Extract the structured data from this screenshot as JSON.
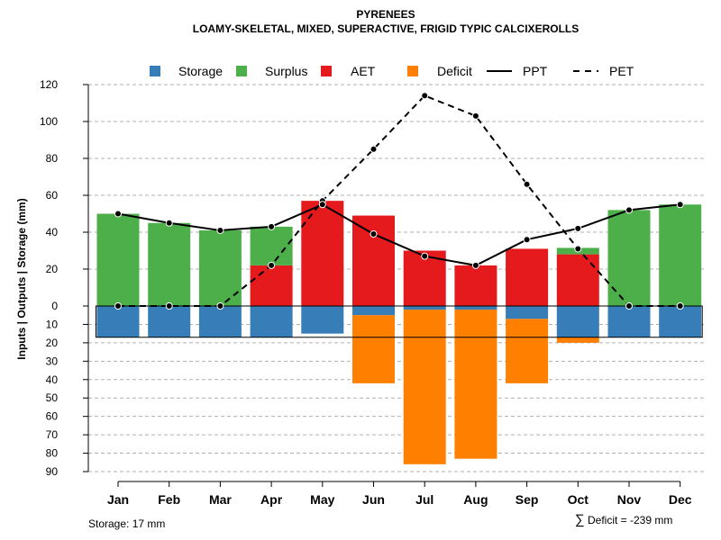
{
  "chart_data": {
    "type": "bar",
    "title": "PYRENEES",
    "subtitle": "LOAMY-SKELETAL, MIXED, SUPERACTIVE, FRIGID TYPIC CALCIXEROLLS",
    "ylabel": "Inputs | Outputs | Storage    (mm)",
    "categories": [
      "Jan",
      "Feb",
      "Mar",
      "Apr",
      "May",
      "Jun",
      "Jul",
      "Aug",
      "Sep",
      "Oct",
      "Nov",
      "Dec"
    ],
    "ylim_top": [
      0,
      120
    ],
    "ylim_bottom": [
      0,
      90
    ],
    "yticks_top": [
      "0",
      "20",
      "40",
      "60",
      "80",
      "100",
      "120"
    ],
    "yticks_bottom": [
      "10",
      "20",
      "30",
      "40",
      "50",
      "60",
      "70",
      "80",
      "90"
    ],
    "storage_capacity": 17,
    "series": [
      {
        "name": "Storage",
        "color": "#377eb8",
        "values": [
          17,
          17,
          17,
          17,
          15,
          5,
          2,
          2,
          7,
          17,
          17,
          17
        ]
      },
      {
        "name": "Surplus",
        "color": "#4daf4a",
        "values": [
          50,
          45,
          41,
          21,
          0,
          0,
          0,
          0,
          0,
          3.5,
          52,
          55
        ]
      },
      {
        "name": "AET",
        "color": "#e41a1c",
        "values": [
          0,
          0,
          0,
          22,
          57,
          49,
          30,
          22,
          31,
          28,
          0,
          0
        ]
      },
      {
        "name": "Deficit",
        "color": "#ff7f00",
        "values": [
          0,
          0,
          0,
          0,
          0,
          37,
          84,
          81,
          35,
          3,
          0,
          0
        ]
      },
      {
        "name": "PPT",
        "color": "#000000",
        "values": [
          50,
          45,
          41,
          43,
          55,
          39,
          27,
          22,
          36,
          42,
          52,
          55
        ]
      },
      {
        "name": "PET",
        "color": "#000000",
        "values": [
          0,
          0,
          0,
          22,
          57,
          85,
          114,
          103,
          66,
          31,
          0,
          0
        ]
      }
    ],
    "legend": {
      "position": "top",
      "items": [
        {
          "label": "Storage",
          "kind": "box",
          "color": "#377eb8"
        },
        {
          "label": "Surplus",
          "kind": "box",
          "color": "#4daf4a"
        },
        {
          "label": "AET",
          "kind": "box",
          "color": "#e41a1c"
        },
        {
          "label": "Deficit",
          "kind": "box",
          "color": "#ff7f00"
        },
        {
          "label": "PPT",
          "kind": "solid-line",
          "color": "#000000"
        },
        {
          "label": "PET",
          "kind": "dashed-line",
          "color": "#000000"
        }
      ]
    },
    "notes": {
      "storage": "Storage: 17 mm",
      "deficit_symbol": "∑",
      "deficit": "Deficit = -239 mm"
    },
    "grid": true
  }
}
